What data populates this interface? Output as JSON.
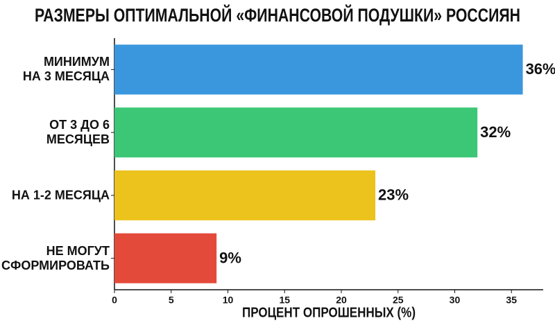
{
  "chart_data": {
    "type": "barh",
    "title": "РАЗМЕРЫ ОПТИМАЛЬНОЙ «ФИНАНСОВОЙ ПОДУШКИ» РОССИЯН",
    "categories": [
      "МИНИМУМ\nНА 3 МЕСЯЦА",
      "ОТ 3 ДО 6\nМЕСЯЦЕВ",
      "НА 1-2 МЕСЯЦА",
      "НЕ МОГУТ\nСФОРМИРОВАТЬ"
    ],
    "values": [
      36,
      32,
      23,
      9
    ],
    "value_labels": [
      "36%",
      "32%",
      "23%",
      "9%"
    ],
    "colors": [
      "#3a97de",
      "#3cc776",
      "#ecc21c",
      "#e44a3a"
    ],
    "x_label": "ПРОЦЕНТ ОПРОШЕННЫХ (%)",
    "xlim": [
      0,
      37.8
    ],
    "xticks": [
      0,
      5,
      10,
      15,
      20,
      25,
      30,
      35
    ]
  }
}
